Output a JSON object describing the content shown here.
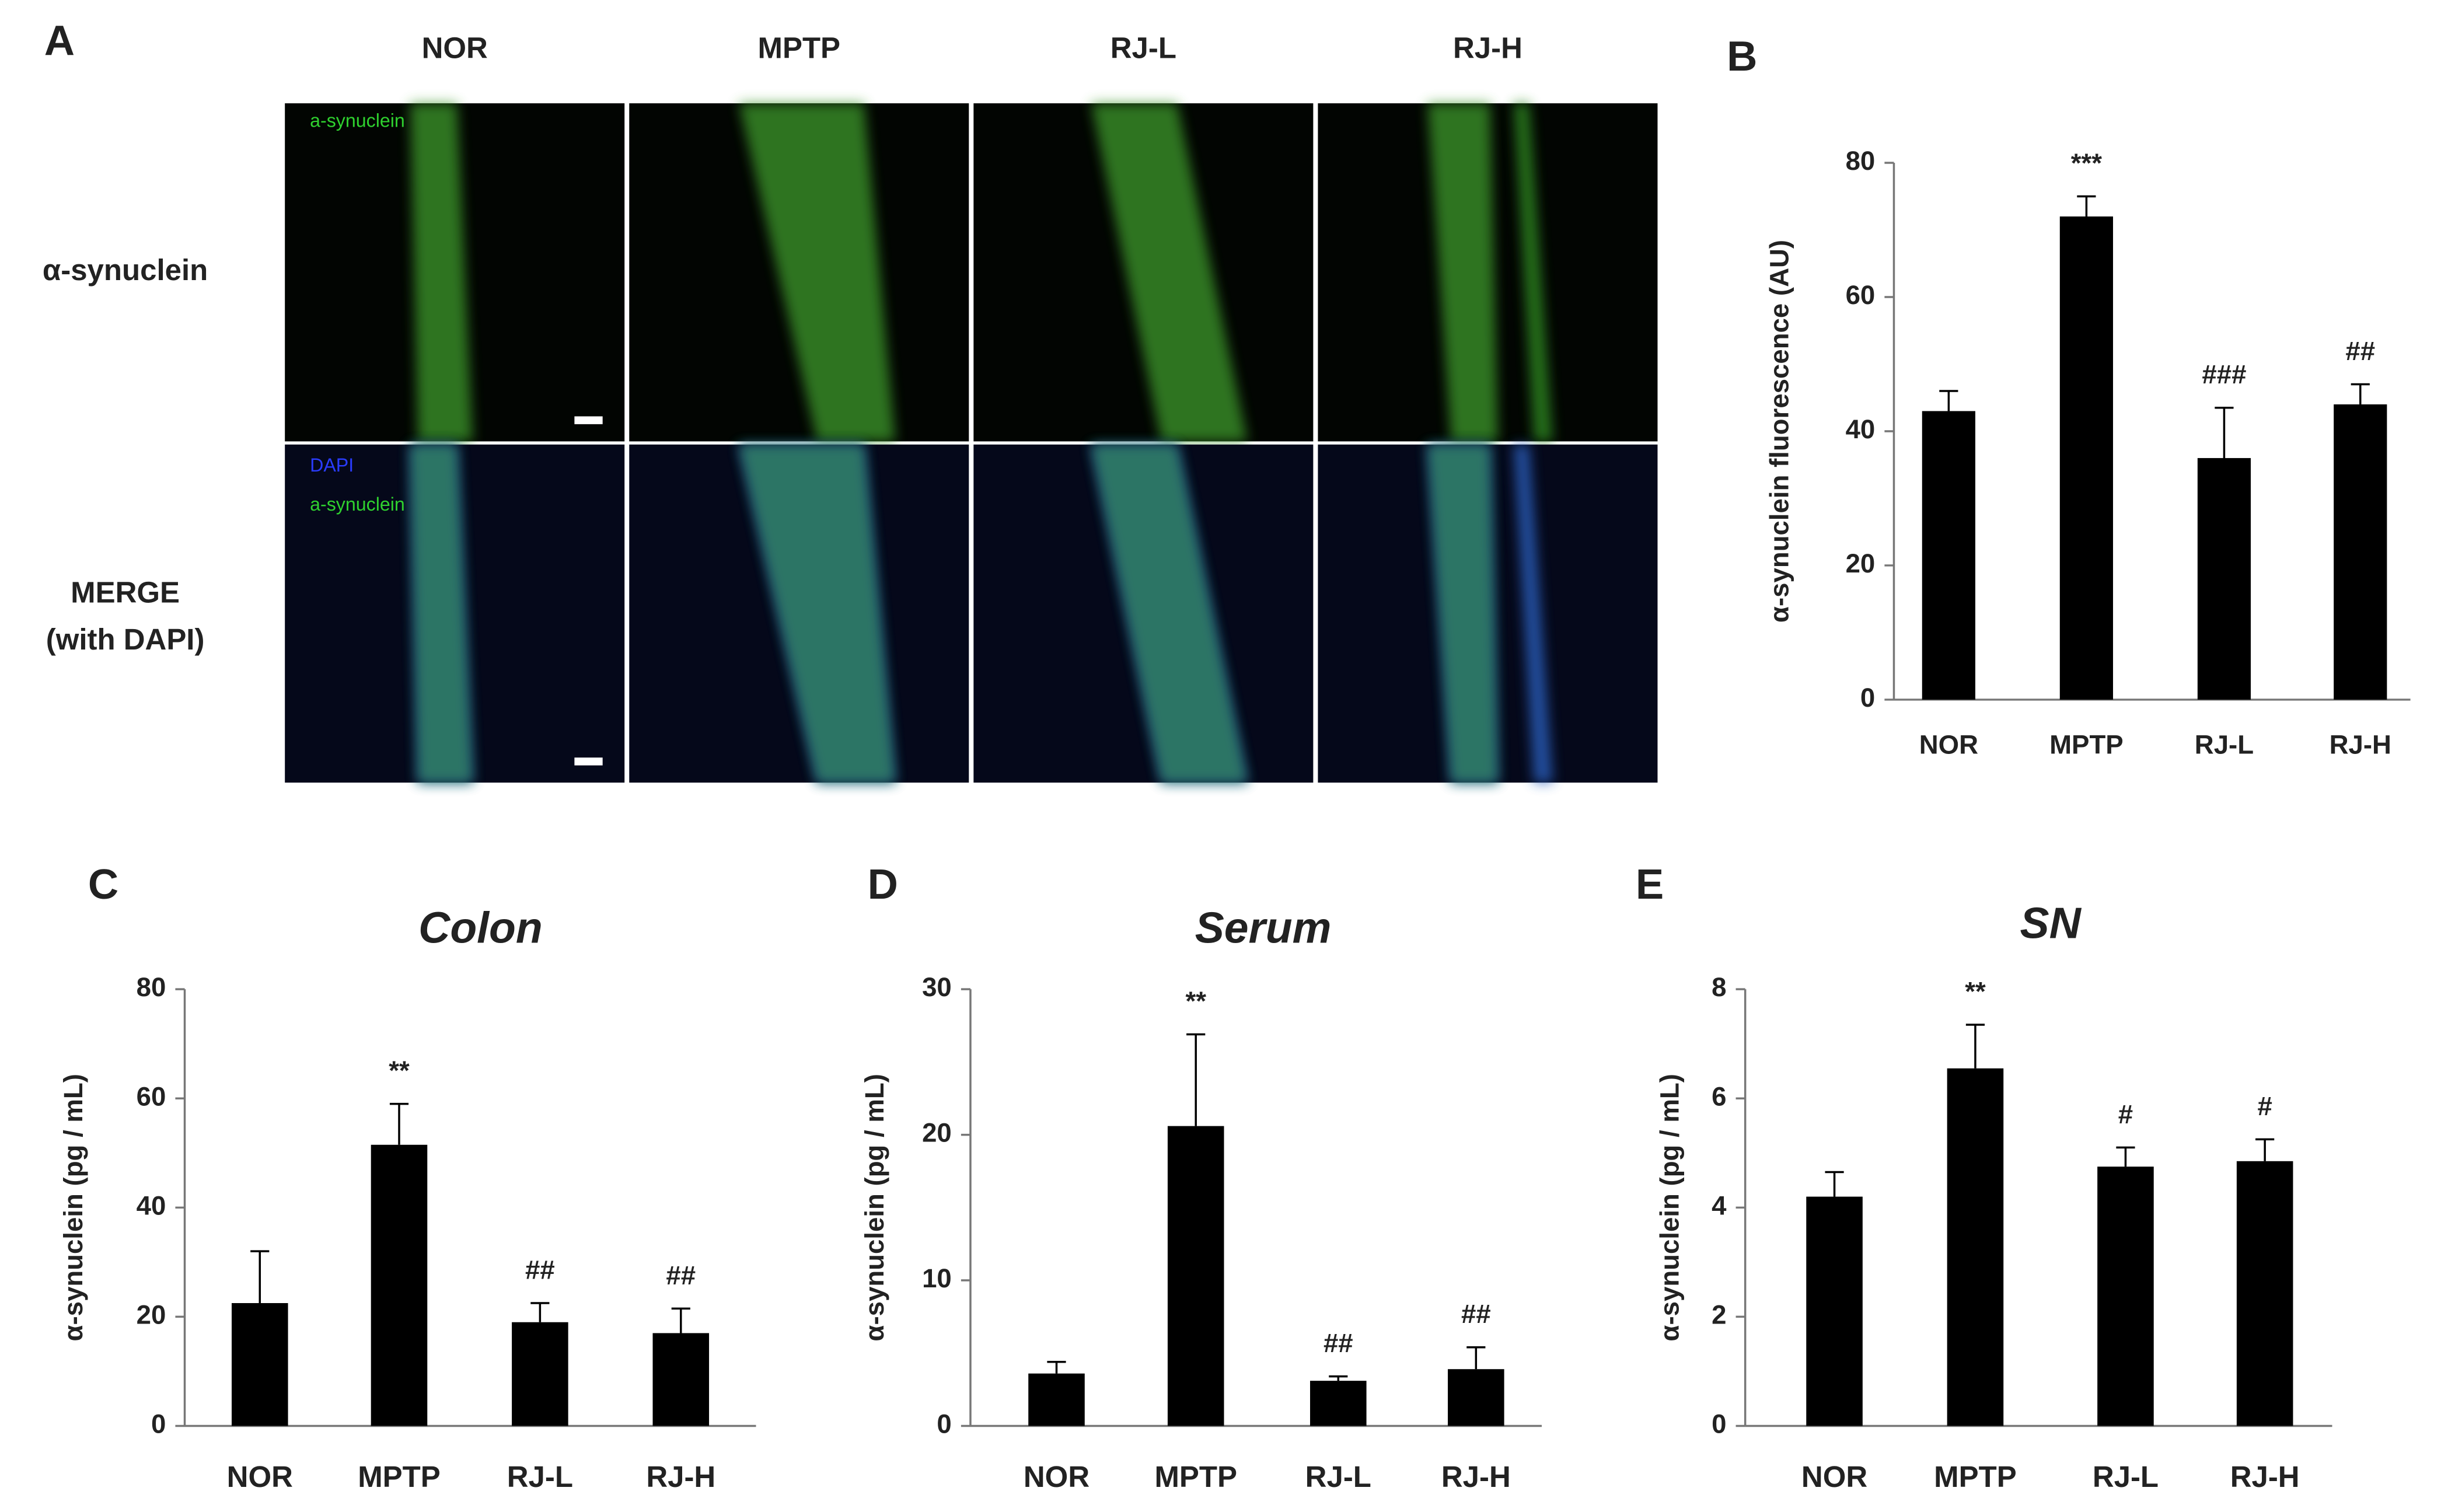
{
  "panel_a": {
    "label": "A",
    "columns": [
      "NOR",
      "MPTP",
      "RJ-L",
      "RJ-H"
    ],
    "row_labels": [
      [
        "α-synuclein"
      ],
      [
        "MERGE",
        "(with DAPI)"
      ]
    ],
    "inset_top": [
      "a-synuclein"
    ],
    "inset_bottom": [
      "DAPI",
      "a-synuclein"
    ]
  },
  "chart_data": [
    {
      "type": "bar",
      "panel": "B",
      "ylabel": "α-synuclein fluorescence (AU)",
      "categories": [
        "NOR",
        "MPTP",
        "RJ-L",
        "RJ-H"
      ],
      "values": [
        43,
        72,
        36,
        44
      ],
      "errors": [
        3,
        3,
        7.5,
        3
      ],
      "annotations": [
        null,
        "***",
        "###",
        "##"
      ],
      "ylim": [
        0,
        80
      ],
      "yticks": [
        0,
        20,
        40,
        60,
        80
      ],
      "color": "#000000"
    },
    {
      "type": "bar",
      "panel": "C",
      "title": "Colon",
      "ylabel": "α-synuclein (pg / mL)",
      "categories": [
        "NOR",
        "MPTP",
        "RJ-L",
        "RJ-H"
      ],
      "values": [
        22.5,
        51.5,
        19,
        17
      ],
      "errors": [
        9.5,
        7.5,
        3.5,
        4.5
      ],
      "annotations": [
        null,
        "**",
        "##",
        "##"
      ],
      "ylim": [
        0,
        80
      ],
      "yticks": [
        0,
        20,
        40,
        60,
        80
      ],
      "color": "#000000"
    },
    {
      "type": "bar",
      "panel": "D",
      "title": "Serum",
      "ylabel": "α-synuclein (pg / mL)",
      "categories": [
        "NOR",
        "MPTP",
        "RJ-L",
        "RJ-H"
      ],
      "values": [
        3.6,
        20.6,
        3.1,
        3.9
      ],
      "errors": [
        0.8,
        6.3,
        0.3,
        1.5
      ],
      "annotations": [
        null,
        "**",
        "##",
        "##"
      ],
      "ylim": [
        0,
        30
      ],
      "yticks": [
        0,
        10,
        20,
        30
      ],
      "color": "#000000"
    },
    {
      "type": "bar",
      "panel": "E",
      "title": "SN",
      "ylabel": "α-synuclein (pg / mL)",
      "categories": [
        "NOR",
        "MPTP",
        "RJ-L",
        "RJ-H"
      ],
      "values": [
        4.2,
        6.55,
        4.75,
        4.85
      ],
      "errors": [
        0.45,
        0.8,
        0.35,
        0.4
      ],
      "annotations": [
        null,
        "**",
        "#",
        "#"
      ],
      "ylim": [
        0,
        8
      ],
      "yticks": [
        0,
        2,
        4,
        6,
        8
      ],
      "color": "#000000"
    }
  ]
}
